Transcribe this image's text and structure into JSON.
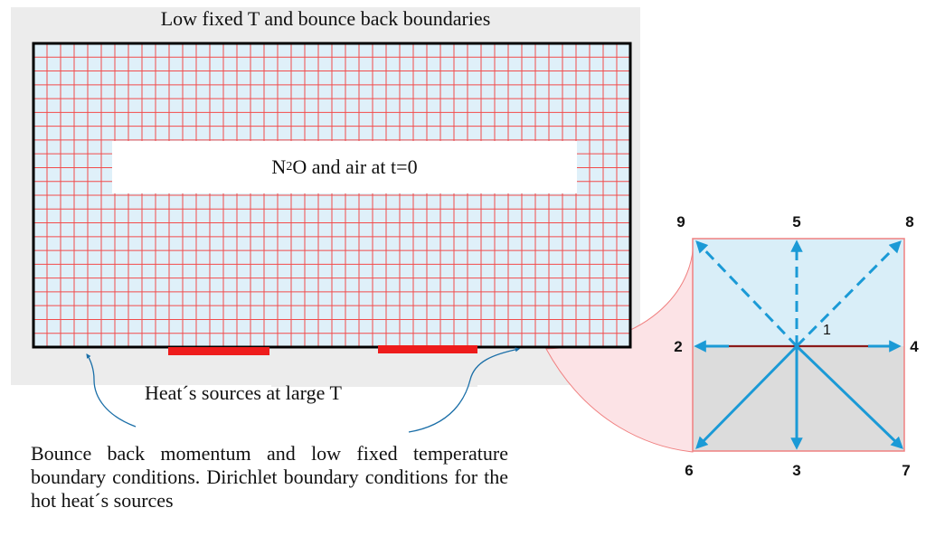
{
  "diagram": {
    "title": "Low fixed T and bounce back boundaries",
    "initial_state": {
      "prefix": "N",
      "subscript": "2",
      "suffix": "O and air at t=0"
    },
    "heat_sources_label": "Heat´s sources at large T",
    "boundary_description": "Bounce back momentum and low fixed temperature boundary conditions. Dirichlet boundary conditions for the hot heat´s sources",
    "lattice_directions": {
      "center": "1",
      "top_left": "9",
      "top": "5",
      "top_right": "8",
      "left": "2",
      "right": "4",
      "bottom_left": "6",
      "bottom": "3",
      "bottom_right": "7"
    }
  },
  "colors": {
    "grid_fill": "#dff0f9",
    "grid_lines": "#f24b4b",
    "border": "#000000",
    "heat_source": "#ee1c1c",
    "arrow": "#1b9ad6",
    "horizontal_axis": "#8b1a1a",
    "cell_top_fill": "#d9eef8",
    "cell_bottom_fill": "#dcdcdc",
    "cell_border": "#f08080",
    "magnifier_fill": "#fce3e6"
  }
}
